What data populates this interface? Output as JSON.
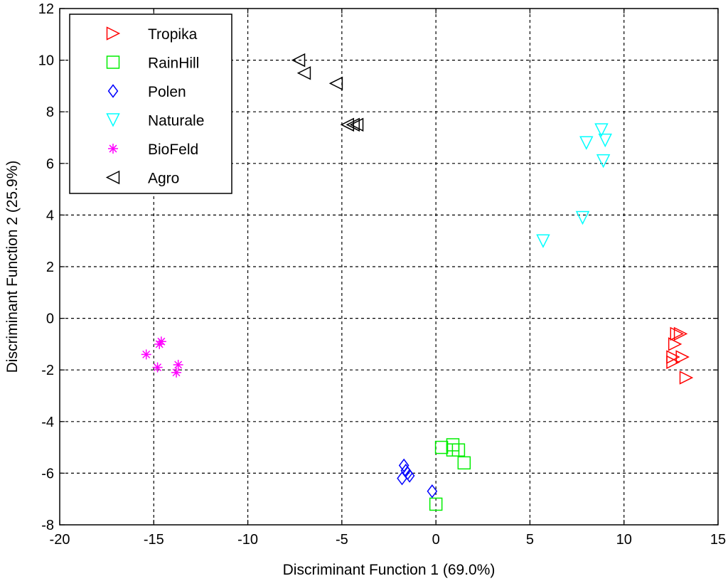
{
  "chart_data": {
    "type": "scatter",
    "xlabel": "Discriminant Function 1 (69.0%)",
    "ylabel": "Discriminant Function 2 (25.9%)",
    "xlim": [
      -20,
      15
    ],
    "ylim": [
      -8,
      12
    ],
    "xticks": [
      -20,
      -15,
      -10,
      -5,
      0,
      5,
      10,
      15
    ],
    "yticks": [
      -8,
      -6,
      -4,
      -2,
      0,
      2,
      4,
      6,
      8,
      10,
      12
    ],
    "grid": true,
    "legend_position": "top-left",
    "series": [
      {
        "name": "Tropika",
        "marker": "triangle-right",
        "color": "#ff0000",
        "points": [
          [
            12.8,
            -0.6
          ],
          [
            13.0,
            -0.6
          ],
          [
            12.7,
            -1.0
          ],
          [
            12.6,
            -1.5
          ],
          [
            13.1,
            -1.5
          ],
          [
            12.6,
            -1.7
          ],
          [
            13.3,
            -2.3
          ]
        ]
      },
      {
        "name": "RainHill",
        "marker": "square",
        "color": "#00ee00",
        "points": [
          [
            0.3,
            -5.0
          ],
          [
            0.9,
            -4.9
          ],
          [
            0.9,
            -5.1
          ],
          [
            1.2,
            -5.1
          ],
          [
            1.5,
            -5.6
          ],
          [
            0.0,
            -7.2
          ]
        ]
      },
      {
        "name": "Polen",
        "marker": "diamond",
        "color": "#0000ff",
        "points": [
          [
            -1.7,
            -5.7
          ],
          [
            -1.6,
            -5.9
          ],
          [
            -1.4,
            -6.1
          ],
          [
            -1.8,
            -6.2
          ],
          [
            -1.5,
            -6.0
          ],
          [
            -0.2,
            -6.7
          ]
        ]
      },
      {
        "name": "Naturale",
        "marker": "triangle-down",
        "color": "#00ffff",
        "points": [
          [
            8.8,
            7.3
          ],
          [
            9.0,
            6.9
          ],
          [
            8.0,
            6.8
          ],
          [
            8.9,
            6.1
          ],
          [
            7.8,
            3.9
          ],
          [
            5.7,
            3.0
          ]
        ]
      },
      {
        "name": "BioFeld",
        "marker": "asterisk",
        "color": "#ff00ff",
        "points": [
          [
            -14.6,
            -0.9
          ],
          [
            -14.7,
            -1.0
          ],
          [
            -15.4,
            -1.4
          ],
          [
            -14.8,
            -1.9
          ],
          [
            -13.7,
            -1.8
          ],
          [
            -13.8,
            -2.1
          ]
        ]
      },
      {
        "name": "Agro",
        "marker": "triangle-left",
        "color": "#000000",
        "points": [
          [
            -7.3,
            10.0
          ],
          [
            -7.0,
            9.5
          ],
          [
            -5.3,
            9.1
          ],
          [
            -4.7,
            7.5
          ],
          [
            -4.4,
            7.5
          ],
          [
            -4.2,
            7.5
          ]
        ]
      }
    ]
  }
}
